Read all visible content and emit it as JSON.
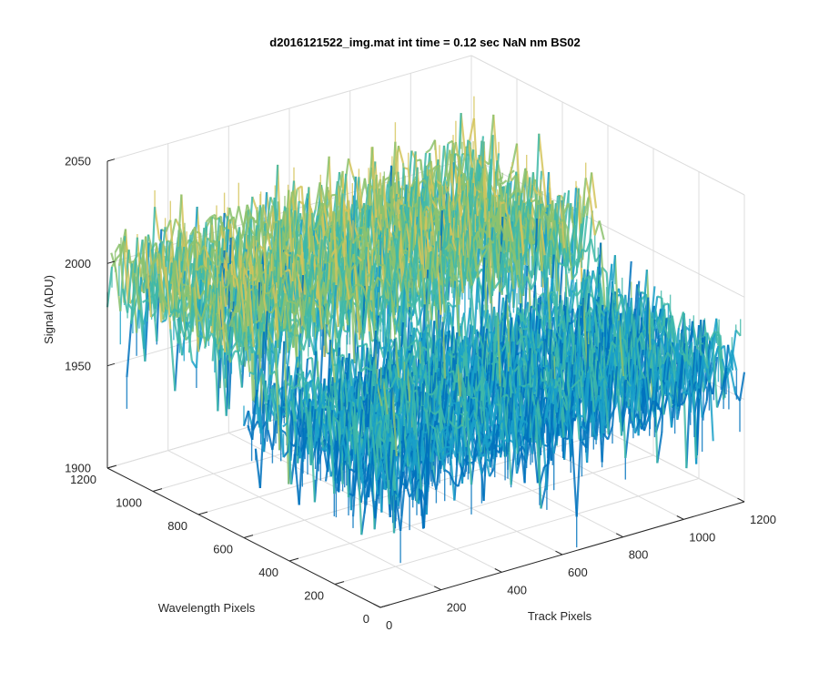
{
  "chart_data": {
    "type": "surface",
    "title": "d2016121522_img.mat int time = 0.12 sec  NaN nm BS02",
    "xlabel": "Track Pixels",
    "ylabel": "Wavelength Pixels",
    "zlabel": "Signal (ADU)",
    "xlim": [
      0,
      1200
    ],
    "ylim": [
      0,
      1200
    ],
    "zlim": [
      1900,
      2050
    ],
    "x_ticks": [
      "0",
      "200",
      "400",
      "600",
      "800",
      "1000",
      "1200"
    ],
    "y_ticks": [
      "0",
      "200",
      "400",
      "600",
      "800",
      "1000",
      "1200"
    ],
    "z_ticks": [
      "1900",
      "1950",
      "2000",
      "2050"
    ],
    "grid": true,
    "colormap": [
      "#0072bd",
      "#1aa0c8",
      "#3fb8a8",
      "#8cc26e",
      "#d4c45a"
    ],
    "surface_level_range": [
      1940,
      2030
    ],
    "surface_mean": 1985,
    "nominal_z_by_region": [
      {
        "x_range": [
          0,
          1200
        ],
        "y_range": [
          0,
          600
        ],
        "z": 1965
      },
      {
        "x_range": [
          0,
          1200
        ],
        "y_range": [
          600,
          1200
        ],
        "z": 1995
      }
    ]
  }
}
